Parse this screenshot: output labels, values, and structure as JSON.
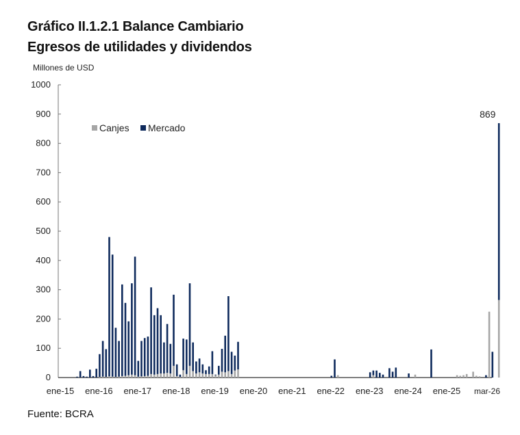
{
  "title": "Gráfico II.1.2.1 Balance Cambiario",
  "subtitle": "Egresos de utilidades y dividendos",
  "source": "Fuente: BCRA",
  "chart_data": {
    "type": "bar",
    "stacked": true,
    "title": "Gráfico II.1.2.1 Balance Cambiario",
    "subtitle": "Egresos de utilidades y dividendos",
    "ylabel": "Millones de USD",
    "xlabel": "",
    "ylim": [
      0,
      1000
    ],
    "yticks": [
      0,
      100,
      200,
      300,
      400,
      500,
      600,
      700,
      800,
      900,
      1000
    ],
    "xtick_labels": [
      "ene-15",
      "ene-16",
      "ene-17",
      "ene-18",
      "ene-19",
      "ene-20",
      "ene-21",
      "ene-22",
      "ene-23",
      "ene-24",
      "ene-25",
      "mar-26"
    ],
    "xtick_month_index": [
      0,
      12,
      24,
      36,
      48,
      60,
      72,
      84,
      96,
      108,
      120,
      134
    ],
    "legend_position": "top-left",
    "grid": false,
    "annotation": {
      "label": "869",
      "month_index": 134,
      "value": 869
    },
    "colors": {
      "Canjes": "#a6a6a6",
      "Mercado": "#0e2a5c"
    },
    "series": [
      {
        "name": "Canjes",
        "values": [
          0,
          0,
          0,
          0,
          0,
          0,
          0,
          0,
          0,
          0,
          0,
          0,
          2,
          3,
          2,
          4,
          3,
          2,
          3,
          5,
          6,
          8,
          10,
          8,
          3,
          4,
          5,
          6,
          12,
          10,
          12,
          14,
          14,
          16,
          14,
          40,
          5,
          2,
          25,
          12,
          40,
          22,
          14,
          18,
          14,
          12,
          12,
          12,
          8,
          10,
          20,
          18,
          22,
          12,
          24,
          28,
          0,
          0,
          0,
          0,
          0,
          0,
          0,
          0,
          0,
          0,
          0,
          0,
          0,
          0,
          0,
          0,
          0,
          0,
          0,
          0,
          0,
          0,
          0,
          0,
          0,
          0,
          0,
          0,
          0,
          0,
          8,
          0,
          0,
          0,
          0,
          0,
          0,
          0,
          0,
          0,
          0,
          8,
          0,
          0,
          0,
          0,
          0,
          0,
          0,
          0,
          0,
          0,
          0,
          0,
          10,
          0,
          0,
          0,
          0,
          0,
          0,
          0,
          0,
          0,
          0,
          0,
          0,
          8,
          6,
          8,
          12,
          0,
          20,
          6,
          4,
          0,
          0,
          225,
          0,
          0,
          265
        ]
      },
      {
        "name": "Mercado",
        "values": [
          0,
          0,
          0,
          0,
          0,
          3,
          22,
          5,
          3,
          27,
          5,
          30,
          78,
          122,
          95,
          476,
          417,
          168,
          122,
          313,
          249,
          184,
          312,
          405,
          54,
          121,
          130,
          134,
          296,
          203,
          225,
          199,
          106,
          167,
          101,
          243,
          40,
          8,
          108,
          118,
          282,
          98,
          41,
          47,
          31,
          13,
          26,
          78,
          2,
          30,
          78,
          125,
          256,
          76,
          51,
          94,
          0,
          0,
          0,
          0,
          0,
          0,
          0,
          0,
          0,
          0,
          0,
          0,
          0,
          0,
          0,
          0,
          0,
          0,
          0,
          0,
          0,
          0,
          0,
          0,
          0,
          0,
          0,
          0,
          6,
          62,
          0,
          0,
          0,
          0,
          0,
          0,
          0,
          0,
          0,
          0,
          18,
          16,
          24,
          16,
          10,
          0,
          32,
          20,
          34,
          0,
          0,
          0,
          14,
          0,
          0,
          0,
          0,
          0,
          0,
          96,
          0,
          0,
          0,
          0,
          0,
          0,
          0,
          0,
          0,
          0,
          0,
          0,
          0,
          0,
          0,
          0,
          8,
          0,
          88,
          0,
          604
        ]
      }
    ]
  }
}
